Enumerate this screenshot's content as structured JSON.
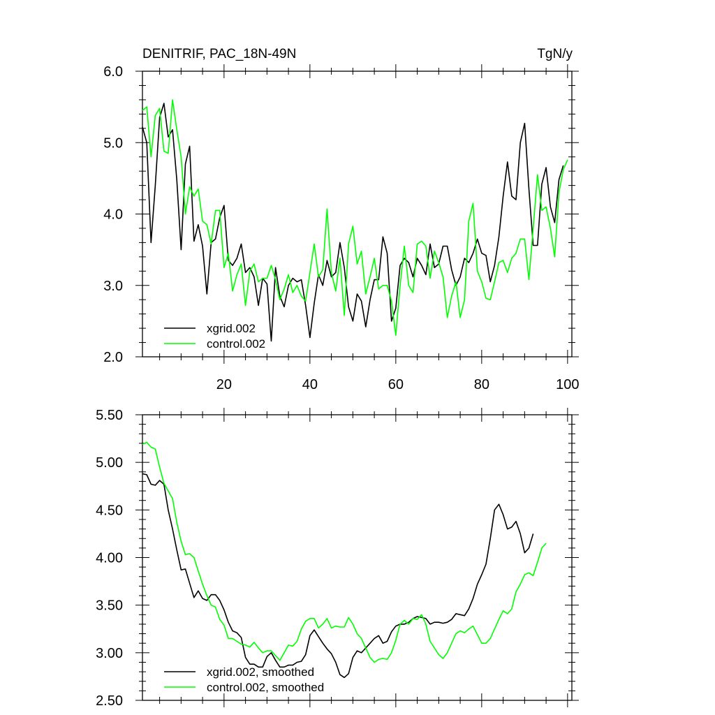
{
  "chart_data": [
    {
      "type": "line",
      "title": "DENITRIF, PAC_18N-49N",
      "units": "TgN/y",
      "xlabel": "",
      "ylabel": "",
      "xlim": [
        1,
        101
      ],
      "ylim": [
        2.0,
        6.0
      ],
      "x_ticks": [
        20,
        40,
        60,
        80,
        100
      ],
      "y_ticks": [
        2.0,
        3.0,
        4.0,
        5.0,
        6.0
      ],
      "y_tick_labels": [
        "2.0",
        "3.0",
        "4.0",
        "5.0",
        "6.0"
      ],
      "legend_position": "bottom-left",
      "grid": false,
      "series": [
        {
          "name": "xgrid.002",
          "color": "#000000",
          "values": [
            5.22,
            5.0,
            3.6,
            4.4,
            5.35,
            5.55,
            5.08,
            5.18,
            4.48,
            3.5,
            4.7,
            4.95,
            3.62,
            3.85,
            3.55,
            2.88,
            3.6,
            3.65,
            3.95,
            4.12,
            3.35,
            3.28,
            3.38,
            3.58,
            3.18,
            3.25,
            3.12,
            2.72,
            3.1,
            3.02,
            2.22,
            3.25,
            2.85,
            2.7,
            3.0,
            3.1,
            3.05,
            3.08,
            2.72,
            2.27,
            2.75,
            3.15,
            3.0,
            3.35,
            3.12,
            3.18,
            3.6,
            3.25,
            2.7,
            2.5,
            2.88,
            2.78,
            2.42,
            2.8,
            3.08,
            3.08,
            3.68,
            3.45,
            2.5,
            2.68,
            3.28,
            3.38,
            3.32,
            3.12,
            3.38,
            3.28,
            3.15,
            3.58,
            3.25,
            3.3,
            3.55,
            3.55,
            3.22,
            3.0,
            3.12,
            3.38,
            3.32,
            3.45,
            3.65,
            3.45,
            3.42,
            3.05,
            3.28,
            3.68,
            4.25,
            4.73,
            4.25,
            4.2,
            5.0,
            5.27,
            4.35,
            3.56,
            3.56,
            4.42,
            4.65,
            4.1,
            3.88,
            4.48,
            4.68
          ]
        },
        {
          "name": "control.002",
          "color": "#00ff00",
          "values": [
            5.45,
            5.5,
            4.8,
            5.38,
            5.48,
            4.88,
            4.85,
            5.6,
            5.18,
            4.8,
            4.0,
            4.38,
            4.25,
            4.35,
            3.9,
            3.85,
            3.58,
            4.05,
            4.05,
            3.25,
            3.45,
            2.92,
            3.15,
            3.3,
            2.72,
            3.2,
            3.3,
            3.05,
            3.1,
            3.1,
            3.28,
            3.08,
            2.8,
            2.95,
            3.15,
            2.9,
            3.0,
            2.85,
            2.78,
            3.18,
            3.58,
            3.12,
            3.22,
            4.07,
            3.18,
            2.92,
            3.38,
            2.58,
            3.58,
            3.83,
            3.3,
            3.48,
            2.88,
            3.12,
            3.38,
            2.95,
            3.0,
            3.0,
            2.78,
            2.3,
            3.0,
            3.55,
            3.0,
            2.9,
            3.58,
            3.62,
            3.55,
            3.1,
            3.48,
            3.32,
            3.12,
            2.55,
            2.85,
            3.05,
            2.55,
            2.8,
            3.9,
            4.15,
            3.2,
            3.05,
            2.82,
            2.8,
            3.05,
            3.32,
            3.35,
            3.18,
            3.38,
            3.45,
            3.65,
            3.65,
            3.08,
            3.8,
            4.55,
            4.05,
            4.1,
            3.8,
            3.4,
            4.3,
            4.62,
            4.76
          ]
        }
      ]
    },
    {
      "type": "line",
      "title": "",
      "xlabel": "",
      "ylabel": "",
      "xlim": [
        1,
        101
      ],
      "ylim": [
        2.5,
        5.5
      ],
      "x_ticks": [
        20,
        40,
        60,
        80,
        100
      ],
      "y_ticks": [
        2.5,
        3.0,
        3.5,
        4.0,
        4.5,
        5.0,
        5.5
      ],
      "y_tick_labels": [
        "2.50",
        "3.00",
        "3.50",
        "4.00",
        "4.50",
        "5.00",
        "5.50"
      ],
      "legend_position": "bottom-left",
      "grid": false,
      "series": [
        {
          "name": "xgrid.002, smoothed",
          "color": "#000000",
          "values": [
            4.88,
            4.87,
            4.77,
            4.76,
            4.81,
            4.77,
            4.5,
            4.3,
            4.08,
            3.87,
            3.88,
            3.73,
            3.58,
            3.65,
            3.57,
            3.55,
            3.61,
            3.61,
            3.55,
            3.45,
            3.32,
            3.23,
            3.21,
            3.16,
            2.95,
            2.88,
            2.88,
            2.85,
            2.85,
            2.96,
            3.0,
            2.92,
            2.85,
            2.85,
            2.87,
            2.87,
            2.9,
            2.91,
            2.98,
            3.18,
            3.24,
            3.17,
            3.1,
            3.04,
            2.99,
            2.9,
            2.77,
            2.74,
            2.78,
            2.95,
            3.02,
            3.0,
            3.05,
            3.1,
            3.15,
            3.18,
            3.1,
            3.12,
            3.22,
            3.28,
            3.3,
            3.3,
            3.32,
            3.36,
            3.38,
            3.37,
            3.36,
            3.3,
            3.32,
            3.32,
            3.31,
            3.32,
            3.35,
            3.41,
            3.4,
            3.39,
            3.46,
            3.57,
            3.72,
            3.82,
            3.93,
            4.2,
            4.5,
            4.56,
            4.45,
            4.3,
            4.32,
            4.38,
            4.25,
            4.05,
            4.1,
            4.25
          ]
        },
        {
          "name": "control.002, smoothed",
          "color": "#00ff00",
          "values": [
            5.19,
            5.21,
            5.16,
            5.14,
            4.95,
            4.78,
            4.7,
            4.62,
            4.37,
            4.17,
            4.03,
            4.04,
            4.0,
            3.86,
            3.72,
            3.6,
            3.5,
            3.48,
            3.35,
            3.29,
            3.15,
            3.15,
            3.12,
            3.09,
            3.08,
            3.06,
            3.11,
            3.05,
            3.0,
            3.02,
            3.02,
            2.97,
            2.92,
            3.0,
            3.08,
            3.07,
            3.12,
            3.25,
            3.33,
            3.36,
            3.36,
            3.26,
            3.3,
            3.36,
            3.26,
            3.28,
            3.27,
            3.27,
            3.37,
            3.3,
            3.2,
            3.15,
            3.05,
            2.95,
            2.9,
            2.93,
            2.94,
            2.93,
            3.0,
            3.13,
            3.3,
            3.34,
            3.3,
            3.36,
            3.35,
            3.4,
            3.3,
            3.12,
            3.05,
            2.98,
            2.94,
            3.0,
            3.1,
            3.2,
            3.23,
            3.21,
            3.25,
            3.28,
            3.19,
            3.1,
            3.1,
            3.15,
            3.25,
            3.35,
            3.44,
            3.41,
            3.46,
            3.64,
            3.72,
            3.82,
            3.84,
            3.81,
            3.95,
            4.1,
            4.15
          ]
        }
      ]
    }
  ]
}
